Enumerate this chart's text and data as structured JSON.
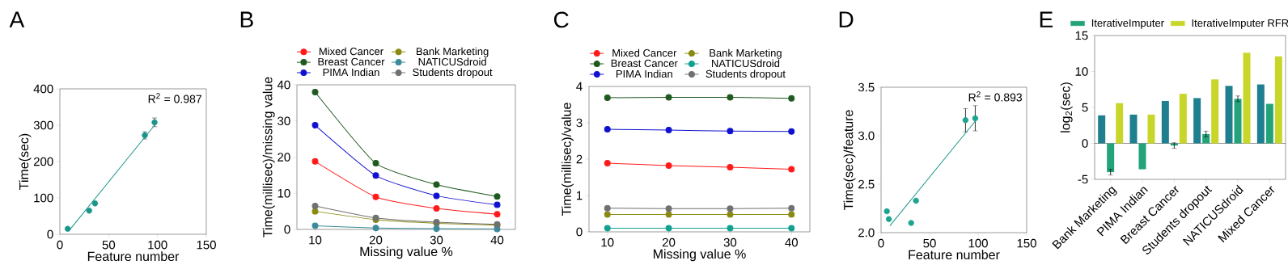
{
  "chart_data": [
    {
      "type": "scatter",
      "title": "A",
      "xlabel": "Feature number",
      "ylabel": "Time(sec)",
      "xlim": [
        0,
        150
      ],
      "xticks": [
        0,
        50,
        100,
        150
      ],
      "ylim": [
        0,
        400
      ],
      "yticks": [
        0,
        100,
        200,
        300,
        400
      ],
      "marker": "circle",
      "annotations": [
        "R$^{2}$ = 0.987"
      ],
      "series": [
        {
          "type": "scatter",
          "color": "#1a958a",
          "x": [
            8,
            30,
            36,
            87,
            97
          ],
          "values": [
            15,
            65,
            85,
            272,
            308
          ],
          "errors": [
            null,
            null,
            null,
            10,
            12
          ]
        },
        {
          "type": "line",
          "marker": "none",
          "color": "#1a958a",
          "x": [
            10,
            97
          ],
          "values": [
            12,
            300
          ]
        }
      ]
    },
    {
      "type": "line",
      "title": "B",
      "xlabel": "Missing value %",
      "ylabel": "Time(millisec)/missing value",
      "xlim": [
        7,
        43
      ],
      "xticks": [
        10,
        20,
        30,
        40
      ],
      "ylim": [
        0,
        40
      ],
      "yticks": [
        0,
        10,
        20,
        30,
        40
      ],
      "marker": "circle",
      "legend": "top",
      "x": [
        10,
        20,
        30,
        40
      ],
      "series": [
        {
          "name": "Mixed Cancer",
          "color": "#ff1a1a",
          "values": [
            18.8,
            9,
            5.8,
            4.2
          ]
        },
        {
          "name": "Bank Marketing",
          "color": "#8a8a10",
          "values": [
            5,
            2.7,
            1.7,
            1.2
          ]
        },
        {
          "name": "Breast Cancer",
          "color": "#1e5a1e",
          "values": [
            38,
            18.3,
            12.4,
            9.1
          ]
        },
        {
          "name": "NATICUSdroid",
          "color": "#3a8a9a",
          "values": [
            1.0,
            0.4,
            0.2,
            0.1
          ]
        },
        {
          "name": "PIMA Indian",
          "color": "#1010d0",
          "values": [
            28.8,
            14.9,
            9.3,
            6.8
          ]
        },
        {
          "name": "Students dropout",
          "color": "#707070",
          "values": [
            6.5,
            3.2,
            2.0,
            1.4
          ]
        }
      ]
    },
    {
      "type": "line",
      "title": "C",
      "xlabel": "Missing value %",
      "ylabel": "Time(millisec)/value",
      "xlim": [
        7,
        43
      ],
      "xticks": [
        10,
        20,
        30,
        40
      ],
      "ylim": [
        0,
        4
      ],
      "yticks": [
        0,
        1,
        2,
        3,
        4
      ],
      "marker": "circle",
      "legend": "top",
      "x": [
        10,
        20,
        30,
        40
      ],
      "series": [
        {
          "name": "Mixed Cancer",
          "color": "#ff1a1a",
          "values": [
            1.89,
            1.82,
            1.78,
            1.72
          ]
        },
        {
          "name": "Bank Marketing",
          "color": "#8a8a10",
          "values": [
            0.48,
            0.48,
            0.48,
            0.48
          ]
        },
        {
          "name": "Breast Cancer",
          "color": "#1e5a1e",
          "values": [
            3.69,
            3.7,
            3.7,
            3.67
          ]
        },
        {
          "name": "NATICUSdroid",
          "color": "#10a090",
          "values": [
            0.1,
            0.1,
            0.1,
            0.1
          ]
        },
        {
          "name": "PIMA Indian",
          "color": "#1010d0",
          "values": [
            2.82,
            2.8,
            2.77,
            2.76
          ]
        },
        {
          "name": "Students dropout",
          "color": "#707070",
          "values": [
            0.65,
            0.64,
            0.64,
            0.65
          ]
        }
      ]
    },
    {
      "type": "scatter",
      "title": "D",
      "xlabel": "Feature number",
      "ylabel": "Time(sec)/feature",
      "xlim": [
        0,
        150
      ],
      "xticks": [
        0,
        50,
        100,
        150
      ],
      "ylim": [
        2,
        3.5
      ],
      "yticks": [
        {
          "value": 2,
          "label": "2.0"
        },
        {
          "value": 2.5,
          "label": "2.5"
        },
        {
          "value": 3,
          "label": "3.0"
        },
        {
          "value": 3.5,
          "label": "3.5"
        }
      ],
      "marker": "circle",
      "annotations": [
        "R$^{2}$ = 0.893"
      ],
      "series": [
        {
          "type": "scatter",
          "color": "#1fa58f",
          "x": [
            6,
            8,
            31,
            36,
            87,
            97
          ],
          "values": [
            2.22,
            2.14,
            2.1,
            2.33,
            3.16,
            3.18
          ],
          "errors": [
            null,
            null,
            null,
            null,
            0.12,
            0.13
          ]
        },
        {
          "type": "line",
          "marker": "none",
          "color": "#1a958a",
          "x": [
            9,
            97
          ],
          "values": [
            2.07,
            3.15
          ]
        }
      ]
    },
    {
      "type": "bar",
      "title": "E",
      "ylabel": "log$_{2}$(sec)",
      "ylim": [
        -5,
        15
      ],
      "yticks": [
        -5,
        0,
        5,
        10,
        15
      ],
      "legend": "top",
      "categories": [
        "Bank Marketing",
        "PIMA Indian",
        "Breast Cancer",
        "Students dropout",
        "NATICUSdroid",
        "Mixed Cancer"
      ],
      "series": [
        {
          "color": "#1f7f8f",
          "values": [
            3.9,
            4.0,
            5.9,
            6.3,
            8.0,
            8.2
          ]
        },
        {
          "name": "IterativeImputer",
          "color": "#23a37a",
          "values": [
            -4.0,
            -3.6,
            -0.3,
            1.3,
            6.2,
            5.5
          ],
          "errors": [
            0.4,
            null,
            0.4,
            0.4,
            0.4,
            null
          ]
        },
        {
          "name": "IterativeImputer RFR",
          "color": "#c8d62a",
          "values": [
            5.6,
            4.0,
            6.9,
            8.9,
            12.6,
            12.1
          ]
        }
      ]
    }
  ]
}
